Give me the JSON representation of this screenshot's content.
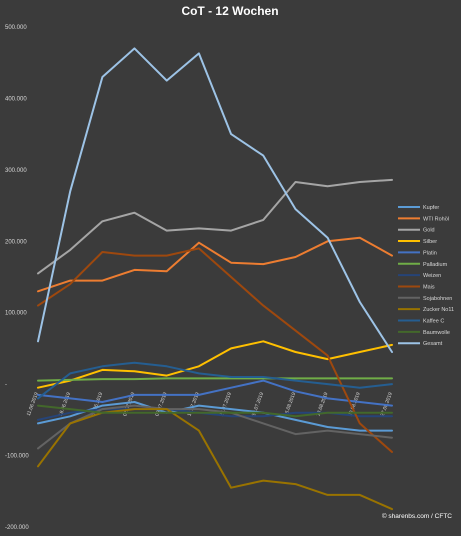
{
  "chart_data": {
    "type": "line",
    "title": "CoT - 12 Wochen",
    "source": "© sharenbs.com / CFTC",
    "ylim": [
      -200000,
      500000
    ],
    "yticks": [
      500000,
      400000,
      300000,
      200000,
      100000,
      0,
      -100000,
      -200000
    ],
    "ytick_labels": [
      "500.000",
      "400.000",
      "300.000",
      "200.000",
      "100.000",
      "-",
      "-100.000",
      "-200.000"
    ],
    "grid": false,
    "legend": "right",
    "x": [
      "11.06.2019",
      "18.06.2019",
      "25.06.2019",
      "02.07.2019",
      "09.07.2019",
      "16.07.2019",
      "23.07.2019",
      "30.07.2019",
      "06.08.2019",
      "13.08.2019",
      "20.08.2019",
      "27.08.2019"
    ],
    "series": [
      {
        "name": "Kupfer",
        "color": "#5b9bd5",
        "values": [
          -55000,
          -45000,
          -30000,
          -25000,
          -40000,
          -30000,
          -35000,
          -40000,
          -50000,
          -60000,
          -65000,
          -65000
        ]
      },
      {
        "name": "WTI Rohöl",
        "color": "#ed7d31",
        "values": [
          130000,
          145000,
          145000,
          160000,
          158000,
          198000,
          170000,
          168000,
          178000,
          200000,
          205000,
          180000
        ]
      },
      {
        "name": "Gold",
        "color": "#a5a5a5",
        "values": [
          155000,
          188000,
          228000,
          240000,
          215000,
          218000,
          215000,
          230000,
          283000,
          277000,
          283000,
          286000
        ]
      },
      {
        "name": "Silber",
        "color": "#ffc000",
        "values": [
          -5000,
          5000,
          20000,
          18000,
          12000,
          25000,
          50000,
          60000,
          45000,
          35000,
          45000,
          55000
        ]
      },
      {
        "name": "Platin",
        "color": "#4472c4",
        "values": [
          -15000,
          -20000,
          -25000,
          -15000,
          -15000,
          -15000,
          -5000,
          5000,
          -10000,
          -20000,
          -25000,
          -30000
        ]
      },
      {
        "name": "Palladium",
        "color": "#70ad47",
        "values": [
          5000,
          6000,
          7000,
          7000,
          8000,
          8000,
          8000,
          8000,
          8000,
          8000,
          8000,
          8000
        ]
      },
      {
        "name": "Weizen",
        "color": "#264478",
        "values": [
          -50000,
          -40000,
          -35000,
          -35000,
          -35000,
          -40000,
          -45000,
          -45000,
          -40000,
          -40000,
          -45000,
          -45000
        ]
      },
      {
        "name": "Mais",
        "color": "#9e480e",
        "values": [
          110000,
          140000,
          185000,
          180000,
          180000,
          190000,
          150000,
          110000,
          75000,
          40000,
          -55000,
          -95000
        ]
      },
      {
        "name": "Sojabohnen",
        "color": "#636363",
        "values": [
          -90000,
          -55000,
          -35000,
          -30000,
          -35000,
          -35000,
          -40000,
          -55000,
          -70000,
          -65000,
          -70000,
          -75000
        ]
      },
      {
        "name": "Zucker No11",
        "color": "#997300",
        "values": [
          -115000,
          -55000,
          -40000,
          -35000,
          -35000,
          -65000,
          -145000,
          -135000,
          -140000,
          -155000,
          -155000,
          -175000
        ]
      },
      {
        "name": "Kaffee C",
        "color": "#255e91",
        "values": [
          -20000,
          15000,
          25000,
          30000,
          25000,
          15000,
          10000,
          10000,
          5000,
          0,
          -5000,
          0
        ]
      },
      {
        "name": "Baumwolle",
        "color": "#43682b",
        "values": [
          -30000,
          -35000,
          -40000,
          -40000,
          -40000,
          -40000,
          -40000,
          -40000,
          -45000,
          -40000,
          -40000,
          -40000
        ]
      },
      {
        "name": "Gesamt",
        "color": "#9dc3e6",
        "values": [
          60000,
          270000,
          430000,
          470000,
          425000,
          463000,
          350000,
          320000,
          245000,
          205000,
          115000,
          45000
        ]
      }
    ]
  }
}
